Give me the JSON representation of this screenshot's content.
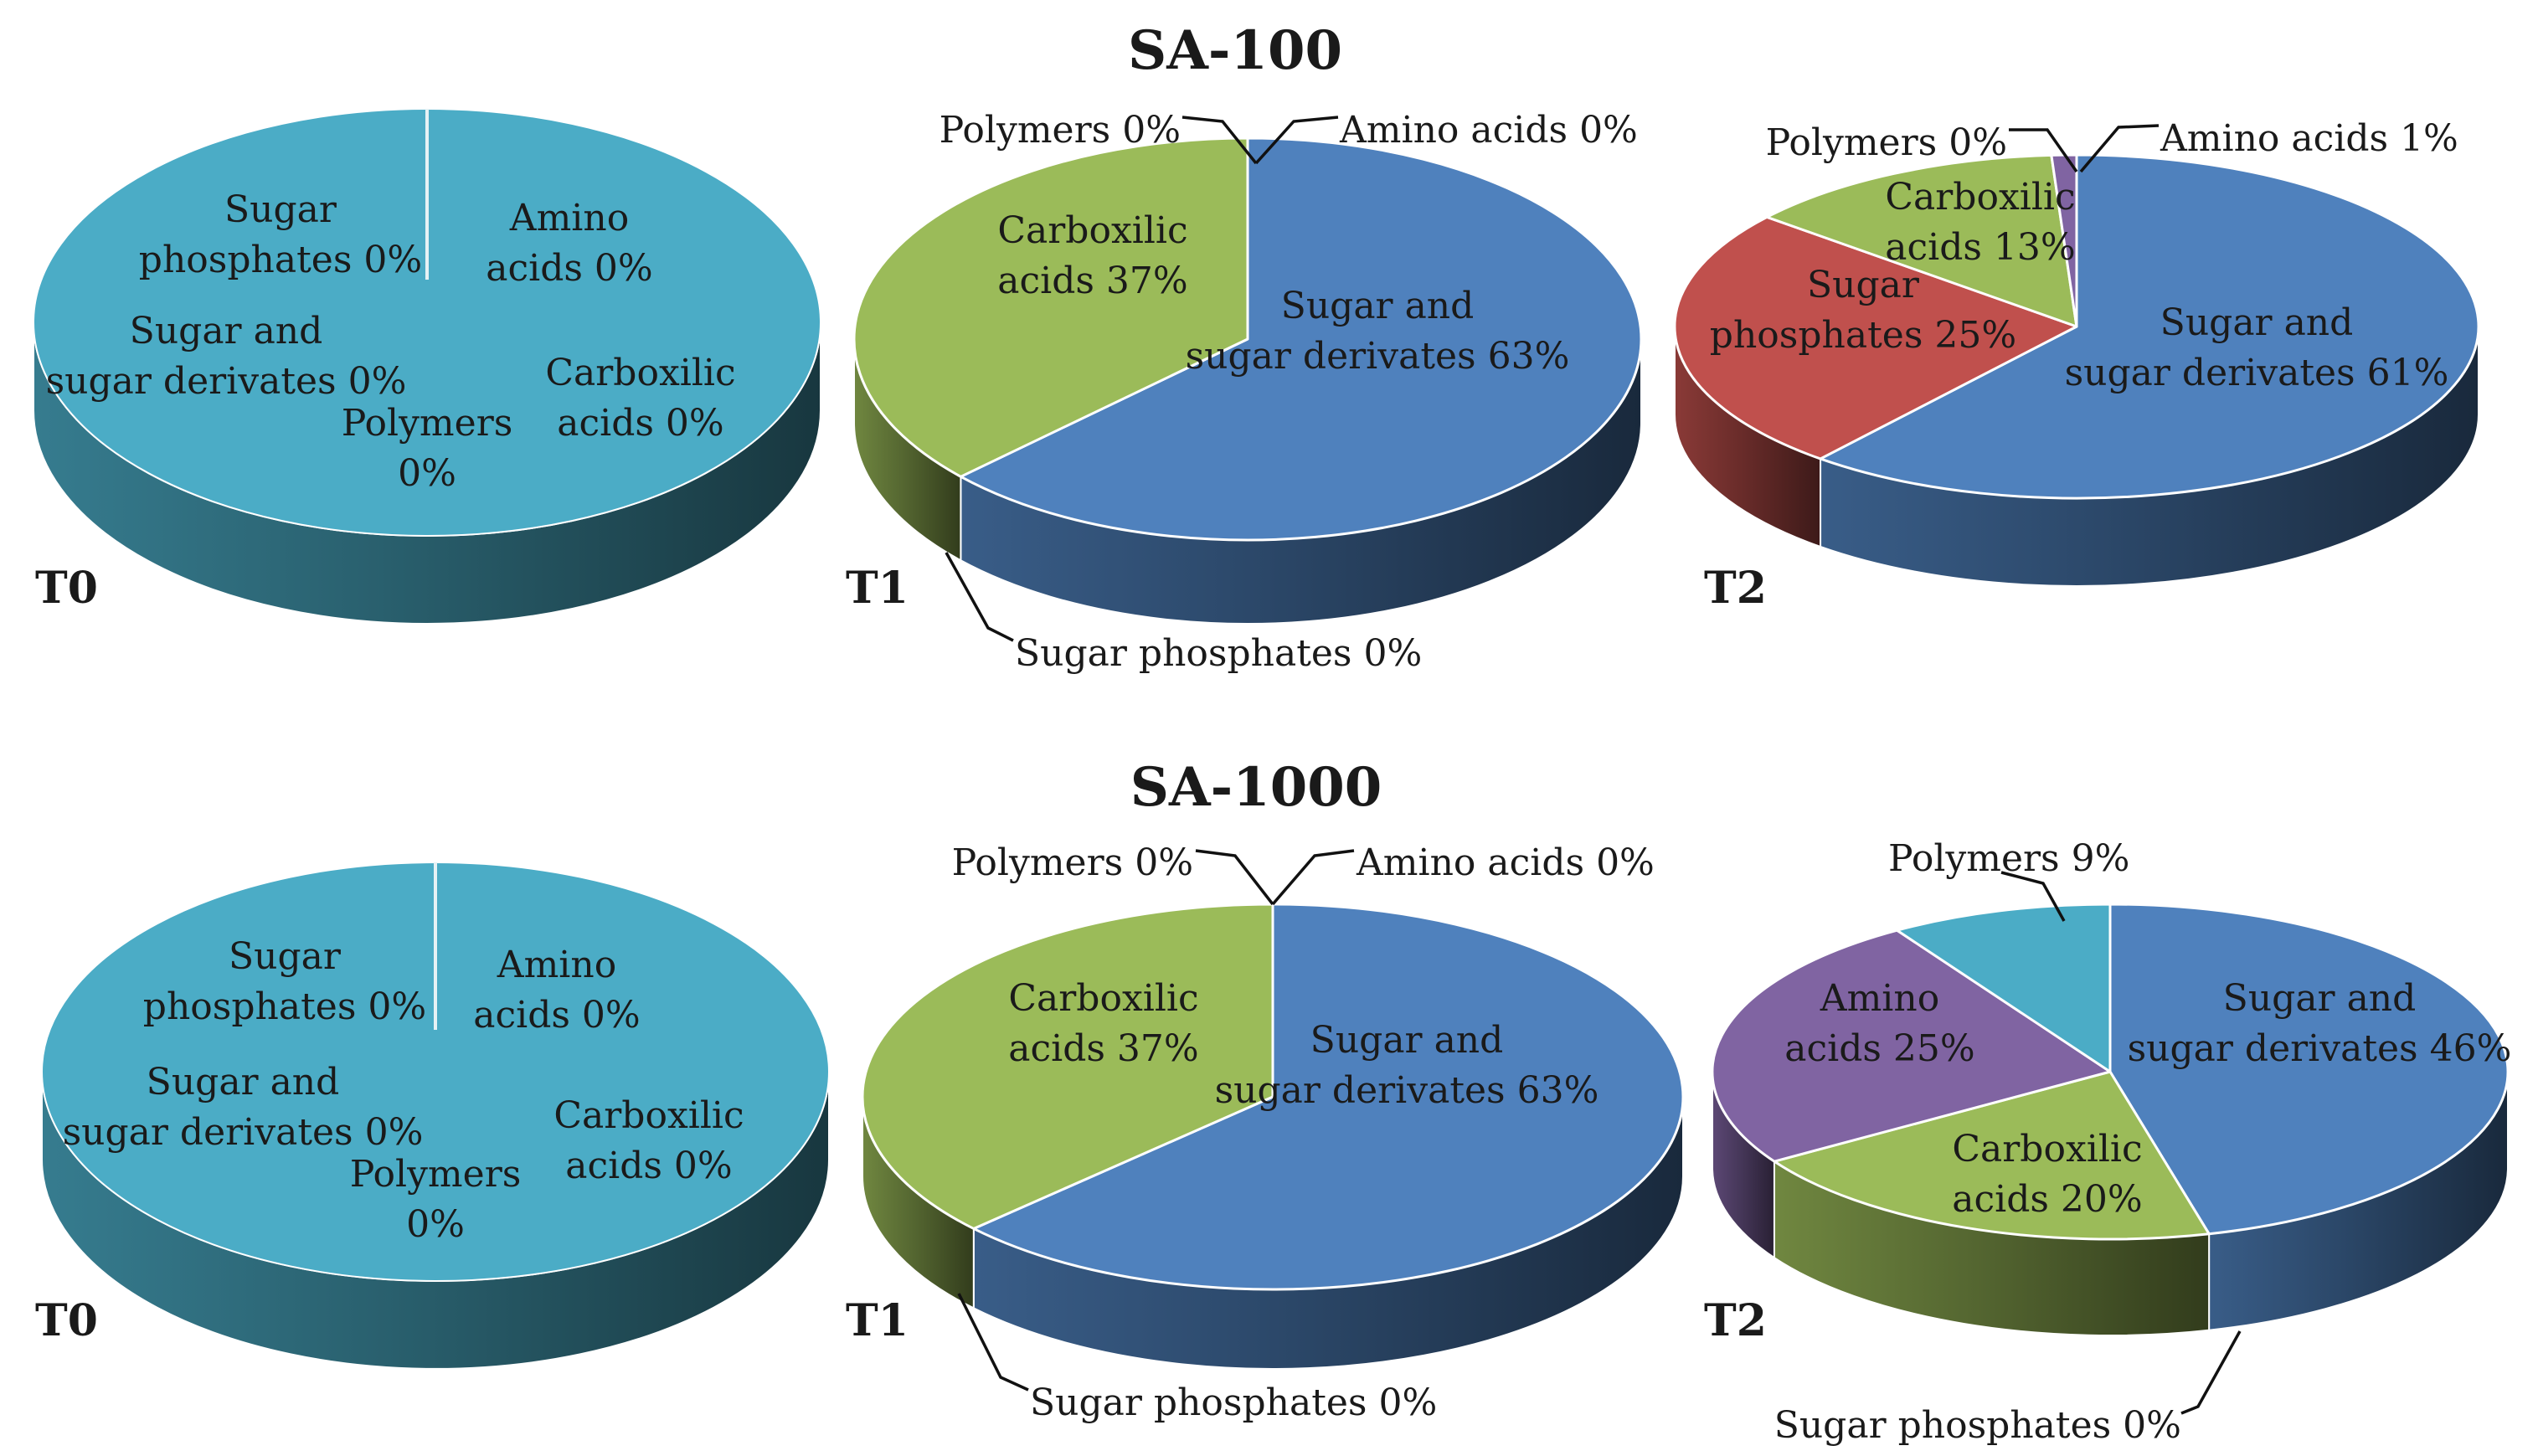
{
  "chart_data": [
    {
      "type": "pie",
      "group": "SA-100",
      "title": "SA-100",
      "subtitle": "T0",
      "slices": [
        {
          "name": "Sugar phosphates",
          "value": 0,
          "label": [
            "Sugar",
            "phosphates 0%"
          ]
        },
        {
          "name": "Amino acids",
          "value": 0,
          "label": [
            "Amino",
            "acids 0%"
          ]
        },
        {
          "name": "Sugar and sugar derivates",
          "value": 0,
          "label": [
            "Sugar and",
            "sugar derivates 0%"
          ]
        },
        {
          "name": "Carboxilic acids",
          "value": 0,
          "label": [
            "Carboxilic",
            "acids 0%"
          ]
        },
        {
          "name": "Polymers",
          "value": 0,
          "label": [
            "Polymers",
            "0%"
          ]
        }
      ]
    },
    {
      "type": "pie",
      "group": "SA-100",
      "subtitle": "T1",
      "slices": [
        {
          "name": "Sugar and sugar derivates",
          "value": 63,
          "label": [
            "Sugar and",
            "sugar derivates 63%"
          ]
        },
        {
          "name": "Carboxilic acids",
          "value": 37,
          "label": [
            "Carboxilic",
            "acids 37%"
          ]
        },
        {
          "name": "Polymers",
          "value": 0,
          "label": [
            "Polymers 0%"
          ]
        },
        {
          "name": "Amino acids",
          "value": 0,
          "label": [
            "Amino acids 0%"
          ]
        },
        {
          "name": "Sugar phosphates",
          "value": 0,
          "label": [
            "Sugar phosphates 0%"
          ]
        }
      ]
    },
    {
      "type": "pie",
      "group": "SA-100",
      "subtitle": "T2",
      "slices": [
        {
          "name": "Sugar and sugar derivates",
          "value": 61,
          "label": [
            "Sugar and",
            "sugar derivates 61%"
          ]
        },
        {
          "name": "Sugar phosphates",
          "value": 25,
          "label": [
            "Sugar",
            "phosphates 25%"
          ]
        },
        {
          "name": "Carboxilic acids",
          "value": 13,
          "label": [
            "Carboxilic",
            "acids 13%"
          ]
        },
        {
          "name": "Polymers",
          "value": 0,
          "label": [
            "Polymers 0%"
          ]
        },
        {
          "name": "Amino acids",
          "value": 1,
          "label": [
            "Amino acids 1%"
          ]
        }
      ]
    },
    {
      "type": "pie",
      "group": "SA-1000",
      "title": "SA-1000",
      "subtitle": "T0",
      "slices": [
        {
          "name": "Sugar phosphates",
          "value": 0,
          "label": [
            "Sugar",
            "phosphates 0%"
          ]
        },
        {
          "name": "Amino acids",
          "value": 0,
          "label": [
            "Amino",
            "acids 0%"
          ]
        },
        {
          "name": "Sugar and sugar derivates",
          "value": 0,
          "label": [
            "Sugar and",
            "sugar derivates 0%"
          ]
        },
        {
          "name": "Carboxilic acids",
          "value": 0,
          "label": [
            "Carboxilic",
            "acids 0%"
          ]
        },
        {
          "name": "Polymers",
          "value": 0,
          "label": [
            "Polymers",
            "0%"
          ]
        }
      ]
    },
    {
      "type": "pie",
      "group": "SA-1000",
      "subtitle": "T1",
      "slices": [
        {
          "name": "Sugar and sugar derivates",
          "value": 63,
          "label": [
            "Sugar and",
            "sugar derivates 63%"
          ]
        },
        {
          "name": "Carboxilic acids",
          "value": 37,
          "label": [
            "Carboxilic",
            "acids 37%"
          ]
        },
        {
          "name": "Polymers",
          "value": 0,
          "label": [
            "Polymers 0%"
          ]
        },
        {
          "name": "Amino acids",
          "value": 0,
          "label": [
            "Amino acids 0%"
          ]
        },
        {
          "name": "Sugar phosphates",
          "value": 0,
          "label": [
            "Sugar phosphates 0%"
          ]
        }
      ]
    },
    {
      "type": "pie",
      "group": "SA-1000",
      "subtitle": "T2",
      "slices": [
        {
          "name": "Sugar and sugar derivates",
          "value": 46,
          "label": [
            "Sugar and",
            "sugar derivates 46%"
          ]
        },
        {
          "name": "Carboxilic acids",
          "value": 20,
          "label": [
            "Carboxilic",
            "acids 20%"
          ]
        },
        {
          "name": "Amino acids",
          "value": 25,
          "label": [
            "Amino",
            "acids 25%"
          ]
        },
        {
          "name": "Polymers",
          "value": 9,
          "label": [
            "Polymers 9%"
          ]
        },
        {
          "name": "Sugar phosphates",
          "value": 0,
          "label": [
            "Sugar phosphates 0%"
          ]
        }
      ]
    }
  ],
  "colors": {
    "Sugar and sugar derivates": "#4f81bd",
    "Carboxilic acids": "#9bbb59",
    "Sugar phosphates": "#c0504d",
    "Amino acids": "#8064a2",
    "Polymers": "#4bacc6",
    "empty": "#4bacc6"
  }
}
